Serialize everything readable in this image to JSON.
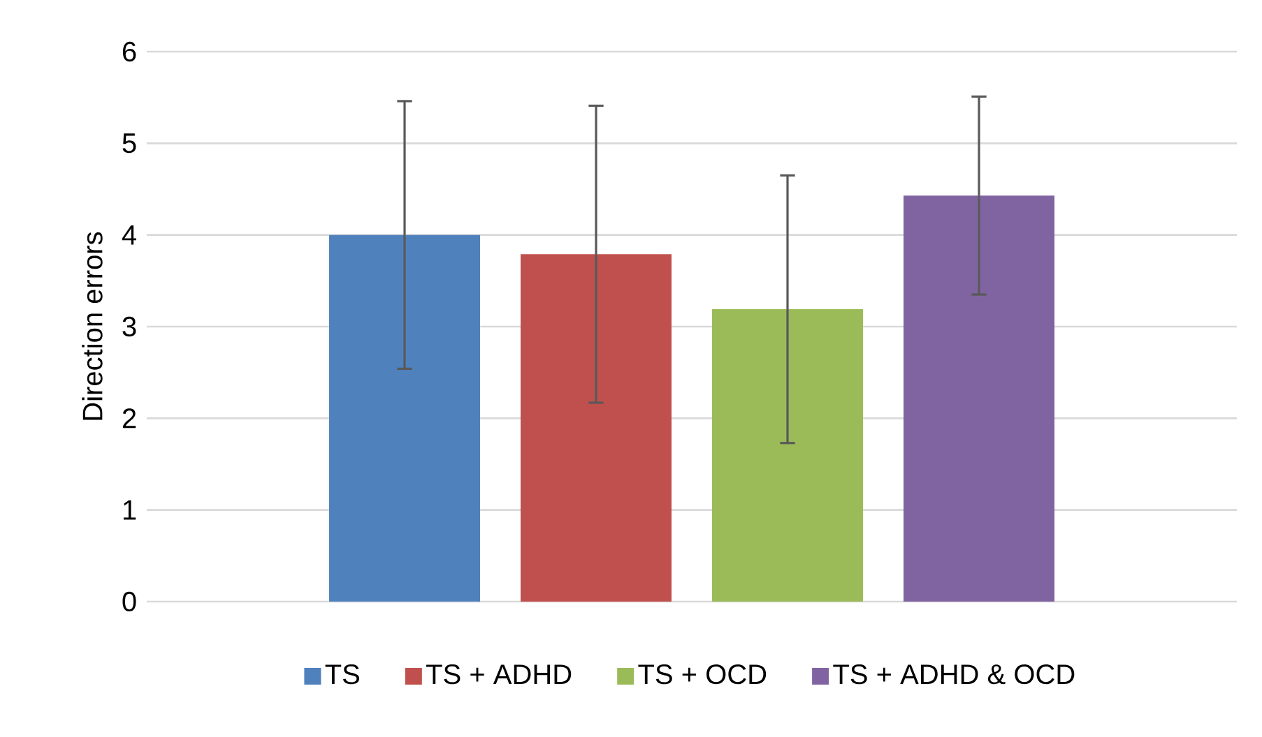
{
  "chart_data": {
    "type": "bar",
    "ylabel": "Direction errors",
    "categories": [
      null
    ],
    "series": [
      {
        "name": "TS",
        "color": "#4f81bd",
        "values": [
          4.0
        ],
        "errors": [
          1.46
        ]
      },
      {
        "name": "TS + ADHD",
        "color": "#c0504d",
        "values": [
          3.79
        ],
        "errors": [
          1.62
        ]
      },
      {
        "name": "TS + OCD",
        "color": "#9bbb59",
        "values": [
          3.19
        ],
        "errors": [
          1.46
        ]
      },
      {
        "name": "TS + ADHD & OCD",
        "color": "#8064a2",
        "values": [
          4.43
        ],
        "errors": [
          1.08
        ]
      }
    ],
    "ylim": [
      0,
      6
    ],
    "yticks": [
      0,
      1,
      2,
      3,
      4,
      5,
      6
    ],
    "grid": "y",
    "legend": "bottom"
  }
}
